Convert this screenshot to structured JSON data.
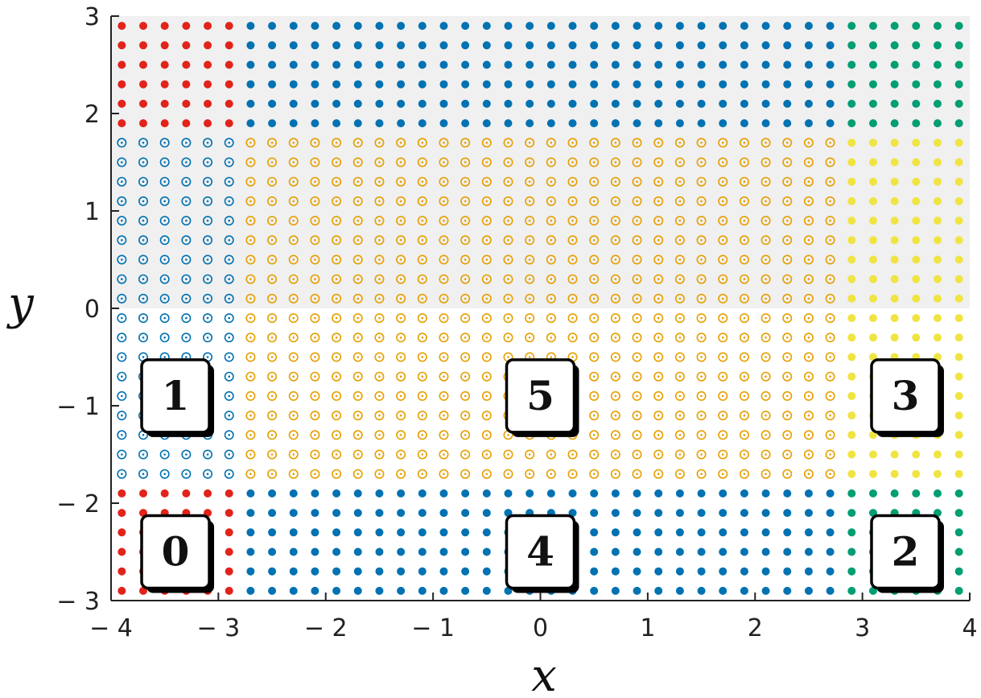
{
  "chart_data": {
    "type": "scatter",
    "title": "",
    "xlabel": "x",
    "ylabel": "y",
    "xlim": [
      -4,
      4
    ],
    "ylim": [
      -3,
      3
    ],
    "xticks": [
      -4,
      -3,
      -2,
      -1,
      0,
      1,
      2,
      3,
      4
    ],
    "yticks": [
      -3,
      -2,
      -1,
      0,
      1,
      2,
      3
    ],
    "xtick_labels": [
      "− 4",
      "− 3",
      "− 2",
      "− 1",
      "0",
      "1",
      "2",
      "3",
      "4"
    ],
    "ytick_labels": [
      "− 3",
      "− 2",
      "− 1",
      "0",
      "1",
      "2",
      "3"
    ],
    "grid": false,
    "legend": "none",
    "shaded_region": {
      "x": [
        -4,
        4
      ],
      "y": [
        0,
        3
      ],
      "color": "#f0f0f0"
    },
    "point_grid": {
      "x_start": -3.9,
      "x_step": 0.2,
      "x_count": 40,
      "y_start": -2.9,
      "y_step": 0.2,
      "y_count": 30
    },
    "regions": [
      {
        "label": "0",
        "x_range": [
          -4,
          -2.8
        ],
        "y_range": [
          -3,
          -1.8
        ],
        "color": "#e2231a",
        "marker": "filled"
      },
      {
        "label": "0",
        "x_range": [
          -4,
          -2.8
        ],
        "y_range": [
          1.8,
          3
        ],
        "color": "#e2231a",
        "marker": "filled"
      },
      {
        "label": "1",
        "x_range": [
          -4,
          -2.8
        ],
        "y_range": [
          -1.8,
          1.8
        ],
        "color": "#0072b2",
        "marker": "open-dot"
      },
      {
        "label": "4",
        "x_range": [
          -2.8,
          2.8
        ],
        "y_range": [
          -3,
          -1.8
        ],
        "color": "#0072b2",
        "marker": "filled"
      },
      {
        "label": "4",
        "x_range": [
          -2.8,
          2.8
        ],
        "y_range": [
          1.8,
          3
        ],
        "color": "#0072b2",
        "marker": "filled"
      },
      {
        "label": "5",
        "x_range": [
          -2.8,
          2.8
        ],
        "y_range": [
          -1.8,
          1.8
        ],
        "color": "#e69f00",
        "marker": "open-dot"
      },
      {
        "label": "2",
        "x_range": [
          2.8,
          4
        ],
        "y_range": [
          -3,
          -1.8
        ],
        "color": "#009e73",
        "marker": "filled"
      },
      {
        "label": "2",
        "x_range": [
          2.8,
          4
        ],
        "y_range": [
          1.8,
          3
        ],
        "color": "#009e73",
        "marker": "filled"
      },
      {
        "label": "3",
        "x_range": [
          2.8,
          4
        ],
        "y_range": [
          -1.8,
          1.8
        ],
        "color": "#f0e442",
        "marker": "filled"
      }
    ],
    "box_labels": [
      {
        "text": "0",
        "x": -3.4,
        "y": -2.5
      },
      {
        "text": "1",
        "x": -3.4,
        "y": -0.9
      },
      {
        "text": "4",
        "x": 0.0,
        "y": -2.5
      },
      {
        "text": "5",
        "x": 0.0,
        "y": -0.9
      },
      {
        "text": "2",
        "x": 3.4,
        "y": -2.5
      },
      {
        "text": "3",
        "x": 3.4,
        "y": -0.9
      }
    ]
  }
}
